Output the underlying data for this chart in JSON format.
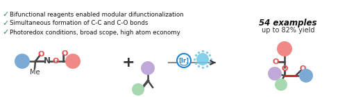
{
  "bg_color": "#ffffff",
  "check_color": "#2e8b57",
  "check_items": [
    "Bifunctional reagents enabled modular difunctionalization",
    "Simultaneous formation of C-C and C-O bonds",
    "Photoredox conditions, broad scope, high atom economy"
  ],
  "examples_text": "54 examples",
  "yield_text": "up to 82% yield",
  "blue_circle": "#7baad4",
  "red_circle": "#f08888",
  "green_circle": "#a8d8b0",
  "purple_circle": "#c0a8d8",
  "bond_color": "#444444",
  "oxygen_color": "#e05050",
  "red_bond": "#cc2222",
  "ir_color": "#2080cc",
  "light_color": "#70c8e8",
  "gray_line": "#888888"
}
